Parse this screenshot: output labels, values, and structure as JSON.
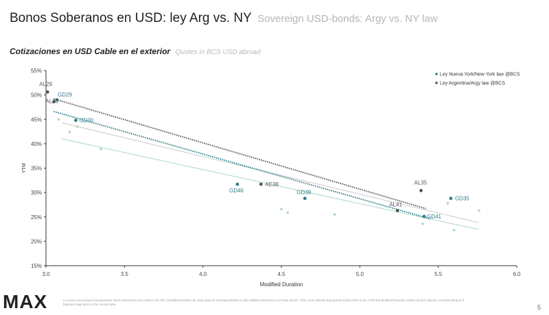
{
  "header": {
    "title": "Bonos Soberanos en USD: ley Arg vs. NY",
    "title_en": "Sovereign USD-bonds: Argy vs. NY law",
    "subtitle": "Cotizaciones en USD Cable en el exterior",
    "subtitle_en": "Quotes in BCS USD abroad"
  },
  "footer": {
    "logo": "MAX",
    "note": "La curva y los puntos transparentes hacen referencia a los valores de TIR y Modified Duration de cada especie correspondientes 5 días hábiles anteriores a la fecha actual. / The curve and the transparent points refer to the YTM and Modified Duration values of each species corresponding to 5 business days prior to the current date.",
    "page_number": "5"
  },
  "colors": {
    "ny": "#2e7d8a",
    "arg": "#555555",
    "ny_faint": "#a8d8c8",
    "arg_faint": "#c8c8c8"
  },
  "chart_data": {
    "type": "scatter",
    "xlabel": "Modified Duration",
    "ylabel": "YTM",
    "xlim": [
      3.0,
      6.0
    ],
    "ylim": [
      15,
      55
    ],
    "x_ticks": [
      "3.0",
      "3.5",
      "4.0",
      "4.5",
      "5.0",
      "5.5",
      "6.0"
    ],
    "y_ticks": [
      "55%",
      "50%",
      "45%",
      "40%",
      "35%",
      "30%",
      "25%",
      "20%",
      "15%"
    ],
    "legend_position": "top-right",
    "series": [
      {
        "name": "Ley Nueva York/New York law @BCS",
        "color": "#2e7d8a",
        "points": [
          {
            "label": "GD29",
            "x": 3.07,
            "y": 49.0
          },
          {
            "label": "GD30",
            "x": 3.19,
            "y": 44.8
          },
          {
            "label": "GD46",
            "x": 4.22,
            "y": 31.7
          },
          {
            "label": "GD38",
            "x": 4.65,
            "y": 28.8
          },
          {
            "label": "GD41",
            "x": 5.41,
            "y": 25.1
          },
          {
            "label": "GD35",
            "x": 5.58,
            "y": 28.8
          }
        ],
        "trend": [
          {
            "x": 3.05,
            "y": 46.6
          },
          {
            "x": 5.45,
            "y": 24.6
          }
        ]
      },
      {
        "name": "Ley Argentina/Argy law @BCS",
        "color": "#555555",
        "points": [
          {
            "label": "AL29",
            "x": 3.01,
            "y": 50.6
          },
          {
            "label": "AL30",
            "x": 3.05,
            "y": 48.6
          },
          {
            "label": "AE38",
            "x": 4.37,
            "y": 31.7
          },
          {
            "label": "AL41",
            "x": 5.24,
            "y": 26.3
          },
          {
            "label": "AL35",
            "x": 5.39,
            "y": 30.4
          }
        ],
        "trend": [
          {
            "x": 3.05,
            "y": 49.2
          },
          {
            "x": 5.42,
            "y": 26.7
          }
        ]
      }
    ],
    "prior_points_ny": [
      {
        "x": 3.15,
        "y": 42.4
      },
      {
        "x": 3.35,
        "y": 38.9
      },
      {
        "x": 4.5,
        "y": 26.6
      },
      {
        "x": 4.54,
        "y": 25.9
      },
      {
        "x": 4.84,
        "y": 25.5
      },
      {
        "x": 5.4,
        "y": 23.6
      },
      {
        "x": 5.6,
        "y": 22.3
      },
      {
        "x": 5.76,
        "y": 26.3
      }
    ],
    "prior_points_arg": [
      {
        "x": 3.08,
        "y": 45.0
      },
      {
        "x": 3.2,
        "y": 43.5
      },
      {
        "x": 5.56,
        "y": 27.8
      }
    ],
    "prior_trend_ny": [
      {
        "x": 3.1,
        "y": 41.0
      },
      {
        "x": 5.76,
        "y": 22.4
      }
    ],
    "prior_trend_arg": [
      {
        "x": 3.1,
        "y": 44.3
      },
      {
        "x": 5.76,
        "y": 23.8
      }
    ]
  }
}
